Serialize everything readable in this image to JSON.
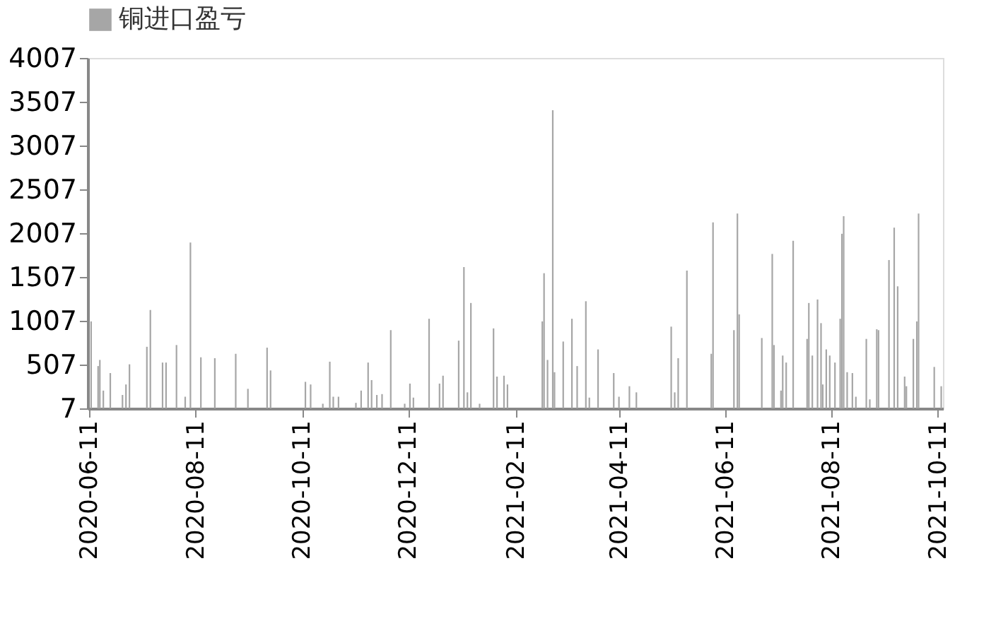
{
  "chart_data": {
    "type": "bar",
    "x": [
      "2020-06-12",
      "2020-06-16",
      "2020-06-17",
      "2020-06-19",
      "2020-06-23",
      "2020-06-30",
      "2020-07-02",
      "2020-07-04",
      "2020-07-14",
      "2020-07-16",
      "2020-07-23",
      "2020-07-25",
      "2020-07-31",
      "2020-08-05",
      "2020-08-08",
      "2020-08-14",
      "2020-08-22",
      "2020-09-03",
      "2020-09-10",
      "2020-09-21",
      "2020-09-23",
      "2020-10-13",
      "2020-10-16",
      "2020-10-23",
      "2020-10-27",
      "2020-10-29",
      "2020-11-01",
      "2020-11-11",
      "2020-11-14",
      "2020-11-18",
      "2020-11-20",
      "2020-11-23",
      "2020-11-26",
      "2020-12-01",
      "2020-12-09",
      "2020-12-12",
      "2020-12-14",
      "2020-12-23",
      "2020-12-29",
      "2020-12-31",
      "2021-01-09",
      "2021-01-12",
      "2021-01-14",
      "2021-01-16",
      "2021-01-21",
      "2021-01-29",
      "2021-01-31",
      "2021-02-04",
      "2021-02-06",
      "2021-02-26",
      "2021-02-27",
      "2021-03-01",
      "2021-03-04",
      "2021-03-05",
      "2021-03-10",
      "2021-03-15",
      "2021-03-18",
      "2021-03-23",
      "2021-03-25",
      "2021-03-30",
      "2021-04-08",
      "2021-04-11",
      "2021-04-17",
      "2021-04-21",
      "2021-05-11",
      "2021-05-13",
      "2021-05-15",
      "2021-05-20",
      "2021-06-03",
      "2021-06-04",
      "2021-06-16",
      "2021-06-18",
      "2021-06-19",
      "2021-07-02",
      "2021-07-08",
      "2021-07-09",
      "2021-07-13",
      "2021-07-14",
      "2021-07-16",
      "2021-07-20",
      "2021-07-28",
      "2021-07-29",
      "2021-07-31",
      "2021-08-03",
      "2021-08-05",
      "2021-08-06",
      "2021-08-08",
      "2021-08-10",
      "2021-08-13",
      "2021-08-16",
      "2021-08-17",
      "2021-08-18",
      "2021-08-20",
      "2021-08-23",
      "2021-08-25",
      "2021-08-31",
      "2021-09-02",
      "2021-09-06",
      "2021-09-07",
      "2021-09-13",
      "2021-09-16",
      "2021-09-18",
      "2021-09-22",
      "2021-09-23",
      "2021-09-27",
      "2021-09-29",
      "2021-09-30",
      "2021-10-09",
      "2021-10-13"
    ],
    "series": [
      {
        "name": "铜进口盈亏",
        "color": "#a6a6a6",
        "values": [
          1000,
          490,
          560,
          210,
          410,
          160,
          280,
          510,
          710,
          1130,
          530,
          530,
          730,
          140,
          1900,
          590,
          580,
          630,
          230,
          700,
          440,
          310,
          280,
          60,
          540,
          140,
          140,
          70,
          210,
          530,
          330,
          160,
          170,
          900,
          60,
          290,
          130,
          1030,
          290,
          380,
          780,
          1620,
          190,
          1210,
          60,
          920,
          370,
          380,
          280,
          1000,
          1550,
          560,
          3410,
          420,
          770,
          1030,
          490,
          1230,
          130,
          680,
          410,
          140,
          260,
          190,
          940,
          190,
          580,
          1580,
          630,
          2130,
          900,
          2230,
          1080,
          810,
          1770,
          730,
          210,
          610,
          530,
          1920,
          800,
          1210,
          610,
          1250,
          980,
          280,
          680,
          610,
          530,
          1030,
          2000,
          2200,
          420,
          410,
          140,
          800,
          110,
          910,
          900,
          1700,
          2070,
          1400,
          370,
          260,
          800,
          1000,
          2230,
          480,
          260
        ]
      }
    ],
    "xlim": [
      "2020-06-10",
      "2021-10-14"
    ],
    "xticks": [
      "2020-06-11",
      "2020-08-11",
      "2020-10-11",
      "2020-12-11",
      "2021-02-11",
      "2021-04-11",
      "2021-06-11",
      "2021-08-11",
      "2021-10-11"
    ],
    "ylim": [
      7,
      4007
    ],
    "yticks": [
      7,
      507,
      1007,
      1507,
      2007,
      2507,
      3007,
      3507,
      4007
    ],
    "legend": "top",
    "grid": false
  }
}
